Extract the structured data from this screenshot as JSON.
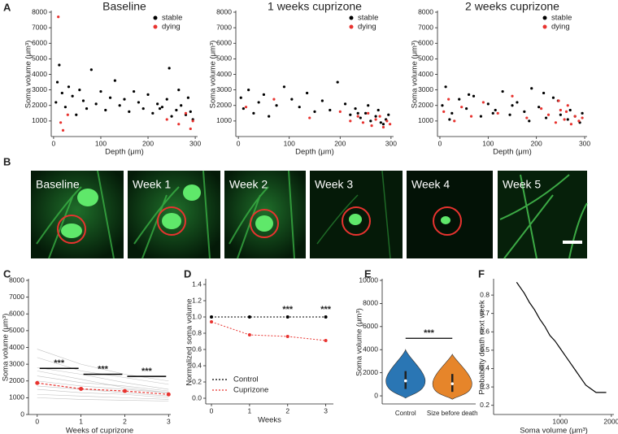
{
  "panel_labels": [
    "A",
    "B",
    "C",
    "D",
    "E",
    "F"
  ],
  "image_panel": {
    "labels": [
      "Baseline",
      "Week 1",
      "Week 2",
      "Week 3",
      "Week 4",
      "Week 5"
    ]
  },
  "chart_data": [
    {
      "type": "scatter",
      "title": "Baseline",
      "xlabel": "Depth (μm)",
      "ylabel": "Soma volume (μm³)",
      "xlim": [
        -5,
        305
      ],
      "ylim": [
        0,
        8000
      ],
      "xticks": [
        0,
        100,
        200,
        300
      ],
      "yticks": [
        1000,
        2000,
        3000,
        4000,
        5000,
        6000,
        7000,
        8000
      ],
      "legend": "upper right",
      "series": [
        {
          "name": "stable",
          "color": "#000000",
          "x": [
            5,
            8,
            12,
            18,
            25,
            32,
            40,
            48,
            55,
            63,
            70,
            80,
            90,
            100,
            110,
            120,
            130,
            140,
            150,
            160,
            170,
            180,
            190,
            200,
            210,
            220,
            230,
            240,
            250,
            260,
            270,
            280,
            290,
            295,
            285,
            265,
            245,
            225
          ],
          "values": [
            2200,
            3500,
            4600,
            2800,
            1900,
            3200,
            2600,
            1400,
            3000,
            2300,
            1800,
            4300,
            2100,
            2900,
            1700,
            2500,
            3600,
            2000,
            2400,
            1600,
            2900,
            2200,
            1800,
            2700,
            1500,
            2100,
            1900,
            2400,
            1300,
            1700,
            2000,
            1400,
            1600,
            1100,
            2500,
            3000,
            4400,
            1800
          ]
        },
        {
          "name": "dying",
          "color": "#e8332f",
          "x": [
            10,
            15,
            20,
            30,
            240,
            265,
            280,
            290,
            295
          ],
          "values": [
            7700,
            900,
            400,
            1400,
            1100,
            800,
            1500,
            500,
            1000
          ]
        }
      ]
    },
    {
      "type": "scatter",
      "title": "1 weeks cuprizone",
      "xlabel": "Depth (μm)",
      "ylabel": "Soma volume (μm³)",
      "xlim": [
        -5,
        305
      ],
      "ylim": [
        0,
        8000
      ],
      "xticks": [
        0,
        100,
        200,
        300
      ],
      "yticks": [
        1000,
        2000,
        3000,
        4000,
        5000,
        6000,
        7000,
        8000
      ],
      "legend": "upper right",
      "series": [
        {
          "name": "stable",
          "color": "#000000",
          "x": [
            5,
            10,
            20,
            30,
            40,
            50,
            60,
            75,
            90,
            105,
            120,
            135,
            150,
            165,
            180,
            195,
            210,
            220,
            230,
            240,
            250,
            260,
            270,
            280,
            290,
            295,
            285,
            275,
            255,
            235
          ],
          "values": [
            2500,
            1800,
            3000,
            1500,
            2200,
            2700,
            1300,
            2000,
            3200,
            2400,
            1900,
            2800,
            1600,
            2300,
            1700,
            3500,
            2100,
            1400,
            1800,
            1200,
            1500,
            1000,
            1300,
            900,
            1100,
            1400,
            800,
            1700,
            2000,
            1500
          ]
        },
        {
          "name": "dying",
          "color": "#e8332f",
          "x": [
            15,
            70,
            140,
            200,
            220,
            235,
            245,
            255,
            262,
            270,
            278,
            285,
            292,
            298
          ],
          "values": [
            1900,
            2400,
            1200,
            1600,
            1000,
            1300,
            900,
            1500,
            700,
            1100,
            1300,
            600,
            1000,
            800
          ]
        }
      ]
    },
    {
      "type": "scatter",
      "title": "2 weeks cuprizone",
      "xlabel": "Depth (μm)",
      "ylabel": "Soma volume (μm³)",
      "xlim": [
        -5,
        305
      ],
      "ylim": [
        0,
        8000
      ],
      "xticks": [
        0,
        100,
        200,
        300
      ],
      "yticks": [
        1000,
        2000,
        3000,
        4000,
        5000,
        6000,
        7000,
        8000
      ],
      "legend": "upper right",
      "series": [
        {
          "name": "stable",
          "color": "#000000",
          "x": [
            5,
            12,
            25,
            40,
            55,
            70,
            85,
            100,
            115,
            130,
            145,
            160,
            175,
            190,
            205,
            220,
            235,
            250,
            265,
            280,
            295,
            290,
            270,
            245,
            215,
            185,
            150,
            110,
            60,
            20
          ],
          "values": [
            2000,
            3200,
            1500,
            2400,
            1800,
            2600,
            1300,
            2100,
            1700,
            2900,
            1400,
            2200,
            1600,
            3100,
            1900,
            1200,
            2500,
            1400,
            1100,
            1300,
            1500,
            900,
            1700,
            2300,
            2800,
            1000,
            2000,
            1500,
            2700,
            1100
          ]
        },
        {
          "name": "dying",
          "color": "#e8332f",
          "x": [
            8,
            18,
            30,
            45,
            65,
            90,
            120,
            150,
            180,
            210,
            225,
            240,
            250,
            258,
            265,
            272,
            280,
            288,
            295,
            262,
            246
          ],
          "values": [
            1600,
            2400,
            1000,
            1900,
            1300,
            2200,
            1500,
            2600,
            1200,
            1800,
            1400,
            900,
            1700,
            1100,
            2000,
            800,
            1300,
            1000,
            1200,
            1600,
            2300
          ]
        }
      ]
    },
    {
      "type": "line",
      "xlabel": "Weeks of cuprizone",
      "ylabel": "Soma volume (μm³)",
      "xlim": [
        -0.2,
        3.05
      ],
      "ylim": [
        0,
        8000
      ],
      "xticks": [
        0,
        1,
        2,
        3
      ],
      "yticks": [
        0,
        1000,
        2000,
        3000,
        4000,
        5000,
        6000,
        7000,
        8000
      ],
      "x": [
        0,
        1,
        2,
        3
      ],
      "values": [
        1880,
        1530,
        1400,
        1200
      ],
      "color": "#e8332f",
      "individual": [
        [
          3400,
          2600,
          2200,
          1800
        ],
        [
          2800,
          2400,
          1900,
          1500
        ],
        [
          2300,
          1900,
          1700,
          1400
        ],
        [
          2000,
          1700,
          1500,
          1300
        ],
        [
          1700,
          1500,
          1300,
          1100
        ],
        [
          1500,
          1300,
          1200,
          1000
        ],
        [
          1200,
          1100,
          1000,
          900
        ],
        [
          3900,
          3000,
          2400,
          2000
        ],
        [
          2600,
          2100,
          1600,
          1300
        ],
        [
          1000,
          900,
          850,
          800
        ]
      ],
      "annotations": [
        "***",
        "***",
        "***"
      ]
    },
    {
      "type": "line",
      "xlabel": "Weeks",
      "ylabel": "Normalized soma volume",
      "xlim": [
        -0.15,
        3.2
      ],
      "ylim": [
        -0.07,
        1.45
      ],
      "xticks": [
        0,
        1,
        2,
        3
      ],
      "yticks": [
        {
          "value": 0,
          "label": "0.0"
        },
        0.2,
        0.4,
        0.6,
        0.8,
        {
          "value": 1,
          "label": "1.0"
        },
        1.2,
        1.4
      ],
      "x": [
        0,
        1,
        2,
        3
      ],
      "legend": "lower left",
      "series": [
        {
          "name": "Control",
          "color": "#000000",
          "values": [
            1,
            1,
            1,
            1
          ]
        },
        {
          "name": "Cuprizone",
          "color": "#e8332f",
          "values": [
            0.94,
            0.78,
            0.76,
            0.71
          ]
        }
      ],
      "annotations": [
        {
          "x": 2,
          "label": "***"
        },
        {
          "x": 3,
          "label": "***"
        }
      ]
    },
    {
      "type": "violin",
      "ylabel": "Soma volume (μm³)",
      "ylim": [
        -700,
        10000
      ],
      "yticks": [
        0,
        2000,
        4000,
        6000,
        8000,
        10000
      ],
      "categories": [
        "Control",
        "Size before death"
      ],
      "values": [
        1300,
        1050
      ],
      "ranges": [
        [
          -200,
          4000
        ],
        [
          -300,
          3600
        ]
      ],
      "colors": [
        "#2a76b4",
        "#e6852a"
      ],
      "annotations": [
        "***"
      ]
    },
    {
      "type": "line",
      "xlabel": "Soma volume (μm³)",
      "ylabel": "Probability death next week",
      "xlim": [
        -300,
        2050
      ],
      "ylim": [
        0.15,
        0.88
      ],
      "xticks": [
        1000,
        2000
      ],
      "yticks": [
        0.2,
        0.3,
        0.4,
        0.5,
        0.6,
        0.7,
        0.8
      ],
      "x": [
        150,
        200,
        300,
        400,
        500,
        600,
        700,
        800,
        900,
        1000,
        1100,
        1200,
        1300,
        1400,
        1500,
        1600,
        1700,
        1800,
        1900
      ],
      "values": [
        0.87,
        0.85,
        0.81,
        0.76,
        0.72,
        0.67,
        0.63,
        0.58,
        0.55,
        0.51,
        0.47,
        0.43,
        0.39,
        0.35,
        0.31,
        0.29,
        0.27,
        0.27,
        0.27
      ],
      "color": "#000000"
    }
  ]
}
